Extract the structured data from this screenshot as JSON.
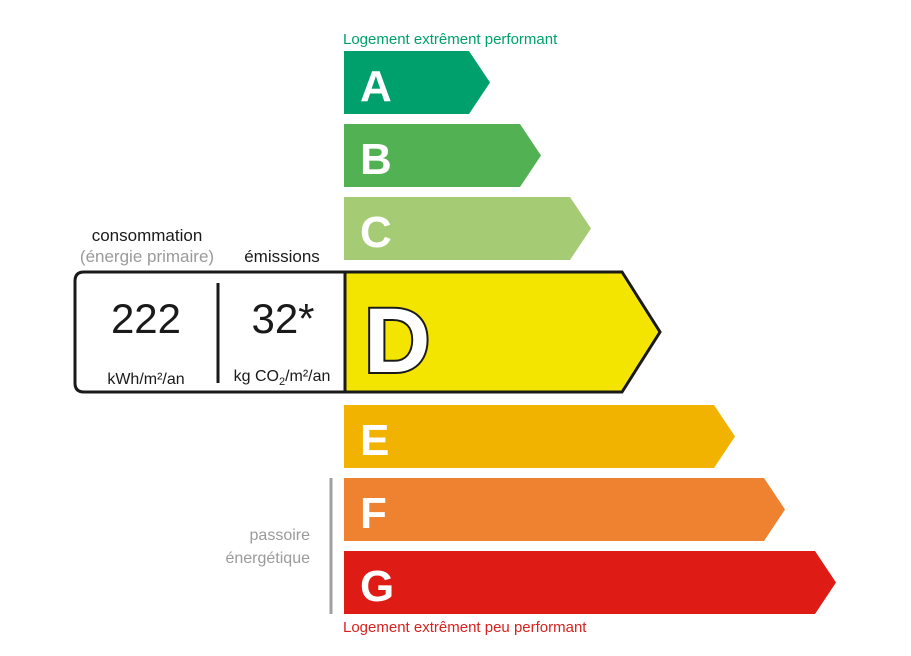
{
  "top_label": "Logement extrêment performant",
  "bottom_label": "Logement extrêment peu performant",
  "classes": [
    {
      "letter": "A",
      "color": "#00a06d"
    },
    {
      "letter": "B",
      "color": "#52b153"
    },
    {
      "letter": "C",
      "color": "#a5cc74"
    },
    {
      "letter": "D",
      "color": "#f4e500"
    },
    {
      "letter": "E",
      "color": "#f2b200"
    },
    {
      "letter": "F",
      "color": "#ee8230"
    },
    {
      "letter": "G",
      "color": "#df1b15"
    }
  ],
  "current_class": "D",
  "consumption": {
    "title": "consommation",
    "subtitle": "(énergie primaire)",
    "value": "222",
    "unit": "kWh/m²/an"
  },
  "emissions": {
    "title": "émissions",
    "value": "32*",
    "unit_prefix": "kg CO",
    "unit_sub": "2",
    "unit_suffix": "/m²/an"
  },
  "passoire_label": [
    "passoire",
    "énergétique"
  ],
  "colors": {
    "top_label": "#00a06d",
    "bottom_label": "#d7221f",
    "muted": "#9a9a9a"
  }
}
